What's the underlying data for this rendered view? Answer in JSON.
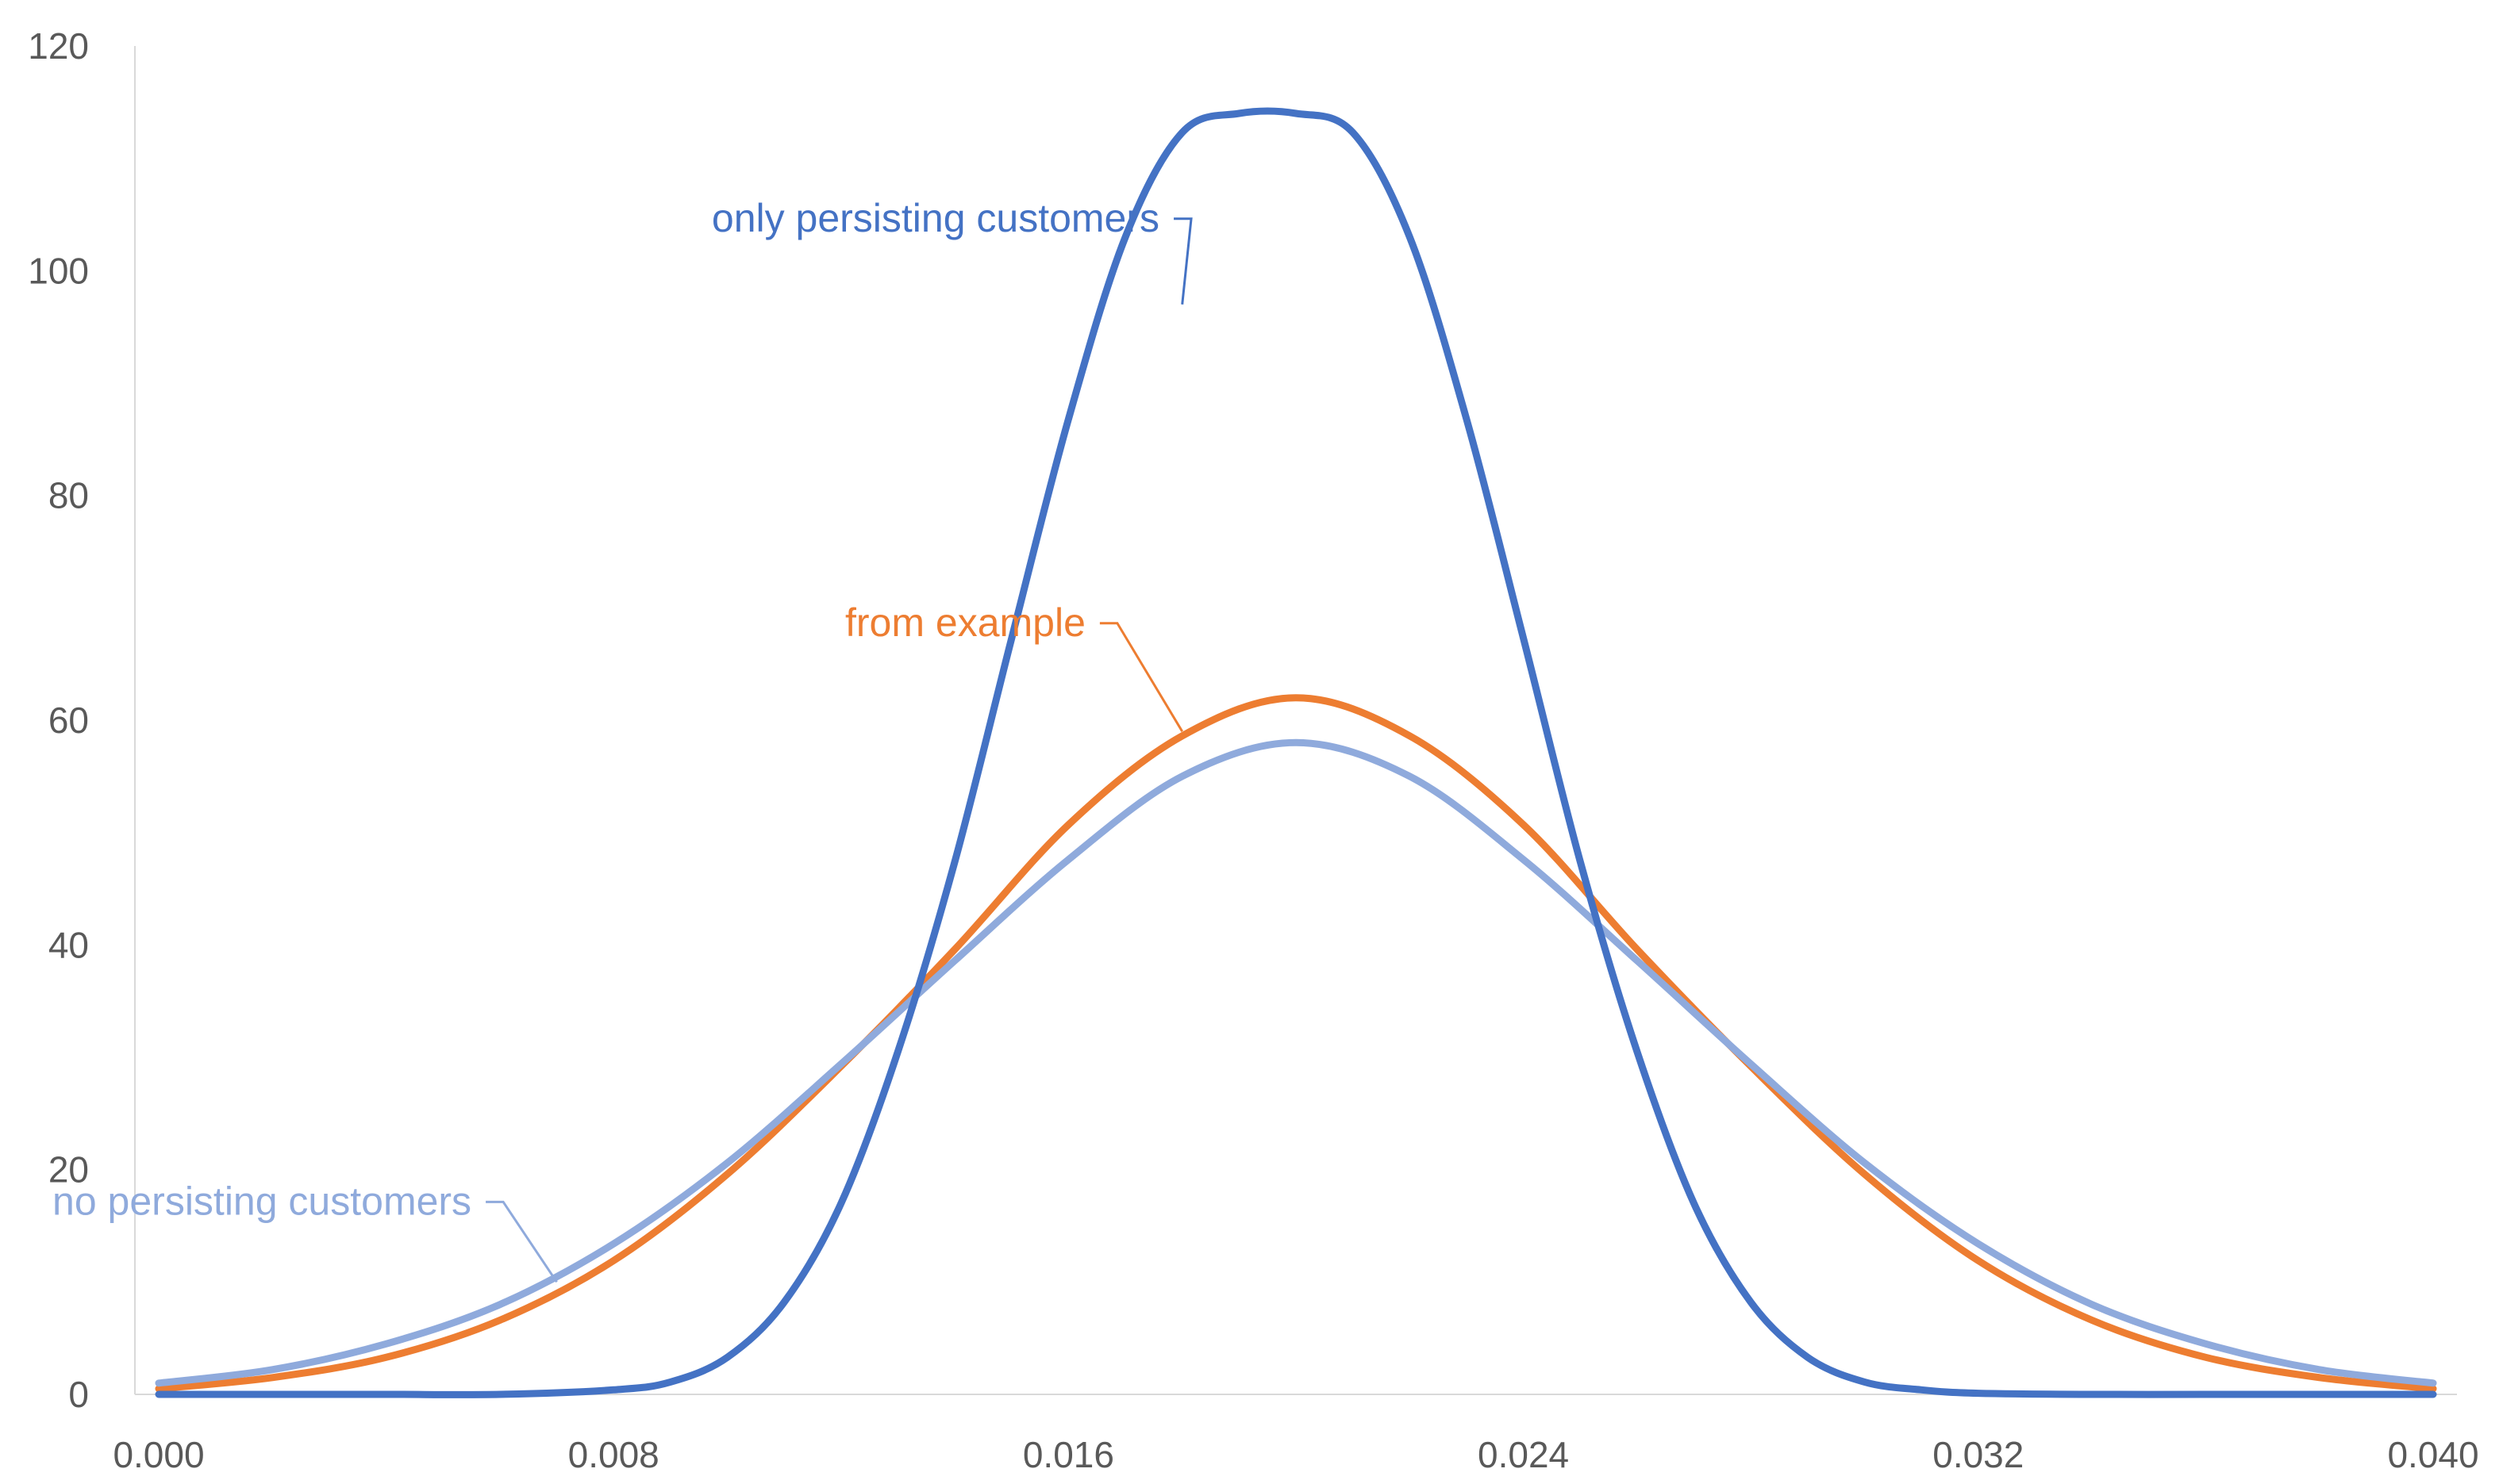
{
  "chart_data": {
    "type": "line",
    "title": "",
    "xlabel": "",
    "ylabel": "",
    "xlim": [
      0.0,
      0.04
    ],
    "ylim": [
      0,
      120
    ],
    "x_ticks": [
      "0.000",
      "0.008",
      "0.016",
      "0.024",
      "0.032",
      "0.040"
    ],
    "y_ticks": [
      "0",
      "20",
      "40",
      "60",
      "80",
      "100",
      "120"
    ],
    "grid": false,
    "legend": "none",
    "series": [
      {
        "name": "only persisting customers",
        "color": "#4472C4",
        "x": [
          0.0,
          0.002,
          0.004,
          0.006,
          0.008,
          0.009,
          0.01,
          0.011,
          0.012,
          0.013,
          0.014,
          0.015,
          0.016,
          0.017,
          0.018,
          0.019,
          0.02,
          0.021,
          0.022,
          0.023,
          0.024,
          0.025,
          0.026,
          0.027,
          0.028,
          0.029,
          0.03,
          0.031,
          0.032,
          0.034,
          0.036,
          0.038,
          0.04
        ],
        "y": [
          0.0,
          0.0,
          0.0,
          0.0,
          0.4,
          1.1,
          3.3,
          8.2,
          17.0,
          30.5,
          47.4,
          67.3,
          86.8,
          103.0,
          112.3,
          114.0,
          114.0,
          112.3,
          103.0,
          86.8,
          67.3,
          47.4,
          30.5,
          17.0,
          8.2,
          3.3,
          1.1,
          0.4,
          0.1,
          0.0,
          0.0,
          0.0,
          0.0
        ]
      },
      {
        "name": "from example",
        "color": "#ED7D31",
        "x": [
          0.0,
          0.002,
          0.004,
          0.006,
          0.008,
          0.01,
          0.012,
          0.014,
          0.016,
          0.018,
          0.02,
          0.022,
          0.024,
          0.026,
          0.028,
          0.03,
          0.032,
          0.034,
          0.036,
          0.038,
          0.04
        ],
        "y": [
          0.5,
          1.5,
          3.3,
          6.6,
          11.9,
          19.6,
          29.2,
          39.6,
          50.7,
          58.6,
          62.0,
          58.6,
          50.7,
          39.6,
          29.2,
          19.6,
          11.9,
          6.6,
          3.3,
          1.5,
          0.5
        ]
      },
      {
        "name": "no persisting customers",
        "color": "#8FAADC",
        "x": [
          0.0,
          0.002,
          0.004,
          0.006,
          0.008,
          0.01,
          0.012,
          0.014,
          0.016,
          0.018,
          0.02,
          0.022,
          0.024,
          0.026,
          0.028,
          0.03,
          0.032,
          0.034,
          0.036,
          0.038,
          0.04
        ],
        "y": [
          1.0,
          2.2,
          4.5,
          8.0,
          13.4,
          20.6,
          29.4,
          38.6,
          47.6,
          55.0,
          58.0,
          55.0,
          47.6,
          38.6,
          29.4,
          20.6,
          13.4,
          8.0,
          4.5,
          2.2,
          1.0
        ]
      }
    ],
    "annotations": [
      {
        "series": 0,
        "text": "only persisting customers",
        "color": "#4472C4",
        "text_anchor_x": 0.0176,
        "text_anchor_y": 103.5,
        "pointer_x": 0.018,
        "pointer_y": 97.0
      },
      {
        "series": 1,
        "text": "from example",
        "color": "#ED7D31",
        "text_anchor_x": 0.0163,
        "text_anchor_y": 67.5,
        "pointer_x": 0.018,
        "pointer_y": 59.0
      },
      {
        "series": 2,
        "text": "no persisting customers",
        "color": "#8FAADC",
        "text_anchor_x": 0.0055,
        "text_anchor_y": 16.0,
        "pointer_x": 0.007,
        "pointer_y": 10.0
      }
    ]
  }
}
